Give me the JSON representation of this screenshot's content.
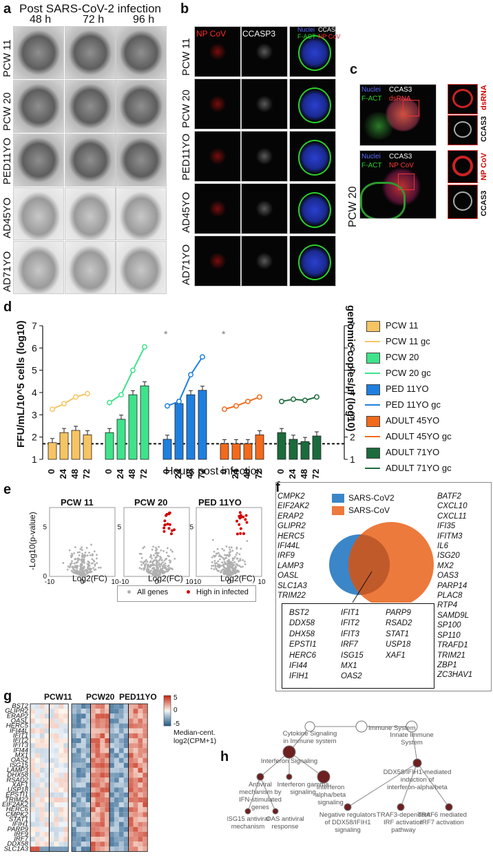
{
  "panel_labels": {
    "a": "a",
    "b": "b",
    "c": "c",
    "d": "d",
    "e": "e",
    "f": "f",
    "g": "g",
    "h": "h"
  },
  "panel_a": {
    "title": "Post SARS-CoV-2 infection",
    "timepoints": [
      "48 h",
      "72 h",
      "96 h"
    ],
    "rows": [
      "PCW 11",
      "PCW 20",
      "PED11YO",
      "AD45YO",
      "AD71YO"
    ]
  },
  "panel_b": {
    "col_labels": {
      "np": "NP CoV",
      "ccasp3": "CCASP3",
      "merge_nuclei": "Nuclei",
      "merge_ccas3": "CCAS3",
      "merge_fact": "F-ACT",
      "merge_np": "NP CoV"
    },
    "rows": [
      "PCW 11",
      "PCW 20",
      "PED11YO",
      "AD45YO",
      "AD71YO"
    ]
  },
  "panel_c": {
    "row_label": "PCW 20",
    "top": {
      "nuclei": "Nuclei",
      "ccas3": "CCAS3",
      "fact": "F-ACT",
      "marker": "dsRNA",
      "side1": "dsRNA",
      "side2": "CCAS3"
    },
    "bottom": {
      "nuclei": "Nuclei",
      "ccas3": "CCAS3",
      "fact": "F-ACT",
      "marker": "NP CoV",
      "side1": "NP CoV",
      "side2": "CCAS3"
    }
  },
  "panel_d": {
    "xlabel": "Hours post infection",
    "ylabel_left": "FFU/mL/10^5 cells (log10)",
    "ylabel_right": "genomic copies/µl (log10)",
    "legend": [
      "PCW 11",
      "PCW 11 gc",
      "PCW 20",
      "PCW 20 gc",
      "PED 11YO",
      "PED 11YO gc",
      "ADULT 45YO",
      "ADULT 45YO gc",
      "ADULT 71YO",
      "ADULT 71YO gc"
    ]
  },
  "chart_data": [
    {
      "type": "bar",
      "title": "",
      "xlabel": "Hours post infection",
      "ylabel": "FFU/mL/10^5 cells (log10)",
      "ylim": [
        1,
        7
      ],
      "categories": [
        "0",
        "24",
        "48",
        "72"
      ],
      "series": [
        {
          "name": "PCW 11",
          "color": "#f7c463",
          "values": [
            1.75,
            2.2,
            2.3,
            2.1
          ]
        },
        {
          "name": "PCW 20",
          "color": "#3ee38a",
          "values": [
            2.2,
            2.8,
            3.9,
            4.3
          ]
        },
        {
          "name": "PED 11YO",
          "color": "#1e7fe0",
          "values": [
            1.9,
            3.5,
            3.9,
            4.1
          ]
        },
        {
          "name": "ADULT 45YO",
          "color": "#f26a1b",
          "values": [
            1.7,
            1.7,
            1.7,
            2.1
          ]
        },
        {
          "name": "ADULT 71YO",
          "color": "#1b6b3d",
          "values": [
            2.2,
            1.9,
            1.8,
            2.05
          ]
        }
      ],
      "gc_series": [
        {
          "name": "PCW 11 gc",
          "color": "#f7c463",
          "values": [
            3.25,
            3.5,
            3.8,
            3.95
          ]
        },
        {
          "name": "PCW 20 gc",
          "color": "#3ee38a",
          "values": [
            3.55,
            3.9,
            5.0,
            6.05
          ]
        },
        {
          "name": "PED 11YO gc",
          "color": "#1e7fe0",
          "values": [
            3.4,
            3.6,
            4.8,
            5.6
          ]
        },
        {
          "name": "ADULT 45YO gc",
          "color": "#f26a1b",
          "values": [
            3.25,
            3.4,
            3.6,
            3.8
          ]
        },
        {
          "name": "ADULT 71YO gc",
          "color": "#1b6b3d",
          "values": [
            3.6,
            3.7,
            3.65,
            3.8
          ]
        }
      ],
      "threshold": 1.7,
      "significance": "*"
    },
    {
      "type": "scatter",
      "panels": [
        "PCW 11",
        "PCW 20",
        "PED 11YO"
      ],
      "xlabel": "Log2(FC)",
      "ylabel": "-Log10(p-value)",
      "xticks": [
        -10,
        0,
        10
      ],
      "yticks": [
        0,
        5
      ],
      "legend": [
        "All genes",
        "High in infected"
      ]
    },
    {
      "type": "heatmap",
      "title": "",
      "groups": [
        "PCW11",
        "PCW20",
        "PED11YO"
      ],
      "xlabels": [
        "Non-inf.",
        "Inf.",
        "Non-inf.",
        "Inf.",
        "Non-inf.",
        "Inf."
      ],
      "genes": [
        "BST2",
        "GLIPR2",
        "ERAP2",
        "OASL",
        "HERC5",
        "IFI44L",
        "IFIT1",
        "IFIT2",
        "IFIT3",
        "IFI44",
        "MX1",
        "OAS2",
        "ISG15",
        "LAMP3",
        "DHX58",
        "RSAD2",
        "XAF1",
        "USP18",
        "EPSTI1",
        "TRIM22",
        "EIF2AK2",
        "HERC6",
        "CMPK2",
        "STAT1",
        "IFIH1",
        "PARP9",
        "IRF9",
        "IRF7",
        "DDX58",
        "SLC1A3"
      ],
      "colorbar_label": "Median-cent. log2(CPM+1)",
      "colorbar_ticks": [
        "5",
        "0",
        "-5"
      ]
    }
  ],
  "panel_e": {
    "titles": [
      "PCW 11",
      "PCW 20",
      "PED 11YO"
    ],
    "ylabel": "-Log10(p-value)",
    "xlabel": "Log2(FC)",
    "legend_all": "All genes",
    "legend_high": "High in infected"
  },
  "panel_f": {
    "legend_sars2": "SARS-CoV2",
    "legend_sars": "SARS-CoV",
    "left_genes": [
      "CMPK2",
      "EIF2AK2",
      "ERAP2",
      "GLIPR2",
      "HERC5",
      "IFI44L",
      "IRF9",
      "LAMP3",
      "OASL",
      "SLC1A3",
      "TRIM22"
    ],
    "right_genes": [
      "BATF2",
      "CXCL10",
      "CXCL11",
      "IFI35",
      "IFITM3",
      "IL6",
      "ISG20",
      "MX2",
      "OAS3",
      "PARP14",
      "PLAC8",
      "RTP4",
      "SAMD9L",
      "SP100",
      "SP110",
      "TRAFD1",
      "TRIM21",
      "ZBP1",
      "ZC3HAV1"
    ],
    "shared_genes_col1": [
      "BST2",
      "DDX58",
      "DHX58",
      "EPSTI1",
      "HERC6",
      "IFI44",
      "IFIH1"
    ],
    "shared_genes_col2": [
      "IFIT1",
      "IFIT2",
      "IFIT3",
      "IRF7",
      "ISG15",
      "MX1",
      "OAS2"
    ],
    "shared_genes_col3": [
      "PARP9",
      "RSAD2",
      "STAT1",
      "USP18",
      "XAF1"
    ]
  },
  "panel_h": {
    "nodes": {
      "root": "Immune System",
      "cytokine": "Cytokine Signaling in Immune system",
      "innate": "Innate Immune System",
      "ifn": "Interferon Signaling",
      "ddx": "DDX58/IFIH1-mediated induction of interferon-alpha/beta",
      "antiviral": "Antiviral mechanism by IFN-stimulated genes",
      "gamma": "Interferon gamma signaling",
      "alphabeta": "Interferon alpha/beta signaling",
      "isg15": "ISG15 antiviral mechanism",
      "oas": "OAS antiviral response",
      "negreg": "Negative regulators of DDX58/IFIH1 signaling",
      "traf3": "TRAF3-dependent IRF activation pathway",
      "traf6": "TRAF6 mediated IRF7 activation"
    }
  },
  "colors": {
    "red": "#d40000",
    "blue": "#3a86c8",
    "orange": "#ec7a3c",
    "node_dark": "#6e2020",
    "gray_point": "#b0b0b0"
  }
}
